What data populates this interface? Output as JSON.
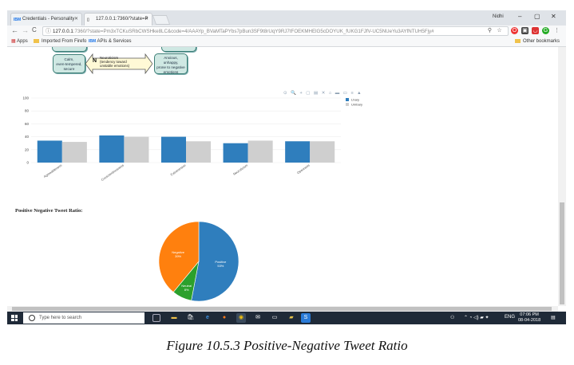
{
  "browser": {
    "tabs": [
      {
        "favicon": "IBM",
        "title": "Credentials - Personality"
      },
      {
        "favicon": "",
        "title": "127.0.0.1:7360/?state=P"
      }
    ],
    "profile": "Nidhi",
    "controls": {
      "minimize": "–",
      "maximize": "▢",
      "close": "✕"
    },
    "url_host": "127.0.0.1",
    "url_path": ":7360/?state=Pm3xTCKuSRbCWSHke8LC&code=4/AAAYp_BVaMTaPYbs7pBun3SF9t8rUqY9RJ7tFOEKMHElG5cDOYUK_fUKG1FJfV-UC5NUeYu3AYfNTUH5Fjy#",
    "bookmarks": {
      "apps": "Apps",
      "items": [
        "Imported From Firefo",
        "APIs & Services"
      ],
      "other": "Other bookmarks"
    },
    "icons": {
      "back": "←",
      "forward": "→",
      "reload": "C",
      "info": "ⓘ",
      "zoom": "🔍",
      "star": "☆"
    }
  },
  "diagram": {
    "left_box_top": "",
    "left_box": [
      "Calm,",
      "even-tempered,",
      "secure"
    ],
    "arrow_letter": "N",
    "arrow_text": [
      "Neuroticism",
      "(tendency toward",
      "unstable emotions)"
    ],
    "right_box": [
      "Anxious,",
      "unhappy,",
      "prone to negative",
      "emotions"
    ]
  },
  "chart_data": [
    {
      "type": "bar",
      "categories": [
        "Agreeableness",
        "Conscientiousness",
        "Extraversion",
        "Neuroticism",
        "Openness"
      ],
      "series": [
        {
          "name": "Lhary",
          "color": "#2f7ebd",
          "values": [
            34,
            42,
            40,
            30,
            33
          ]
        },
        {
          "name": "Umbary",
          "color": "#cfcfcf",
          "values": [
            32,
            40,
            33,
            34,
            33
          ]
        }
      ],
      "yticks": [
        0,
        20,
        40,
        60,
        80,
        100
      ],
      "ylim": [
        0,
        100
      ],
      "legend": "top-right",
      "grid": true
    },
    {
      "type": "pie",
      "title": "Positive Negative Tweet Ratio:",
      "slices": [
        {
          "label": "Positive",
          "value": 53,
          "pct": "53%",
          "color": "#2f7ebd"
        },
        {
          "label": "Neutral",
          "value": 8,
          "pct": "8%",
          "color": "#2ca02c"
        },
        {
          "label": "Negative",
          "value": 39,
          "pct": "39%",
          "color": "#ff800e"
        }
      ]
    }
  ],
  "modebar": "⊙ 🔍 + ▢ ▤ ✕ ⌂ ▬ ▭ ≡ ▲",
  "taskbar": {
    "search_placeholder": "Type here to search",
    "lang": "ENG",
    "time": "07:06 PM",
    "date": "08-04-2018"
  },
  "caption": "Figure 10.5.3 Positive-Negative Tweet Ratio"
}
